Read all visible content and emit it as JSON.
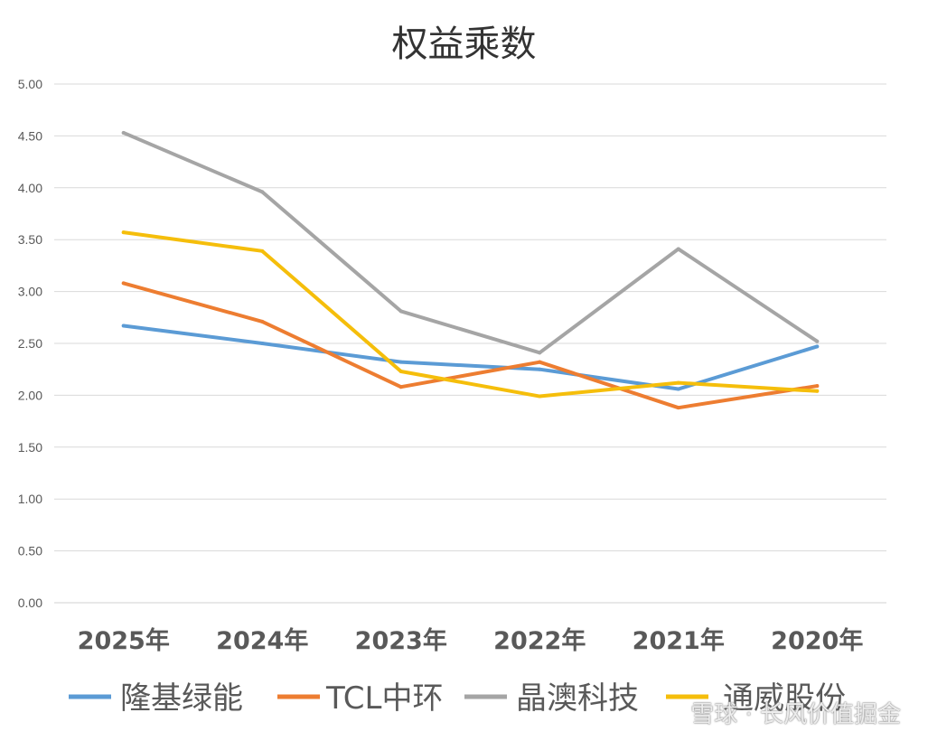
{
  "chart_data": {
    "type": "line",
    "title": "权益乘数",
    "categories": [
      "2025年",
      "2024年",
      "2023年",
      "2022年",
      "2021年",
      "2020年"
    ],
    "ylim": [
      0,
      5
    ],
    "yticks": [
      "0.00",
      "0.50",
      "1.00",
      "1.50",
      "2.00",
      "2.50",
      "3.00",
      "3.50",
      "4.00",
      "4.50",
      "5.00"
    ],
    "grid": true,
    "legend_position": "bottom",
    "series": [
      {
        "name": "隆基绿能",
        "color": "#5B9BD5",
        "values": [
          2.67,
          2.5,
          2.32,
          2.25,
          2.06,
          2.47
        ]
      },
      {
        "name": "TCL中环",
        "color": "#ED7D31",
        "values": [
          3.08,
          2.71,
          2.08,
          2.32,
          1.88,
          2.09
        ]
      },
      {
        "name": "晶澳科技",
        "color": "#A5A5A5",
        "values": [
          4.53,
          3.96,
          2.81,
          2.41,
          3.41,
          2.52
        ]
      },
      {
        "name": "通威股份",
        "color": "#F5BE0B",
        "values": [
          3.57,
          3.39,
          2.23,
          1.99,
          2.12,
          2.04
        ]
      }
    ]
  },
  "watermark": "雪球 · 长风价值掘金"
}
